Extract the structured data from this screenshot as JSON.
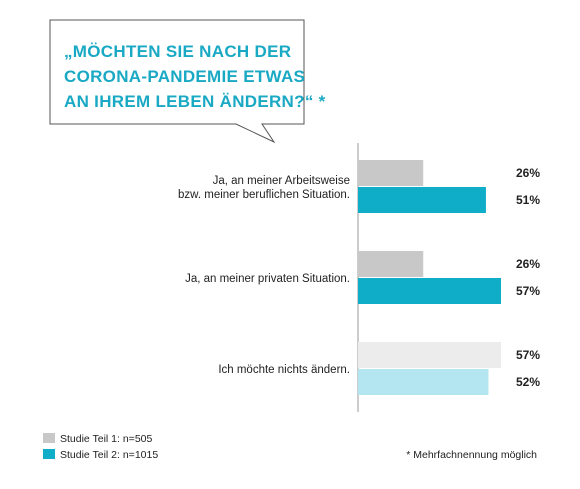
{
  "title_lines": [
    "„MÖCHTEN SIE NACH DER",
    "CORONA-PANDEMIE ETWAS",
    "AN IHREM LEBEN ÄNDERN?“ *"
  ],
  "footnote": "* Mehrfachnennung möglich",
  "colors": {
    "teil1": "#c8c8c8",
    "teil2": "#10adc9",
    "teil1_light": "#ececec",
    "teil2_light": "#b3e6f0",
    "title": "#1aa9c4"
  },
  "chart_data": {
    "type": "bar",
    "orientation": "horizontal",
    "categories": [
      [
        "Ja, an meiner Arbeitsweise",
        "bzw. meiner beruflichen Situation."
      ],
      [
        "Ja, an meiner privaten Situation."
      ],
      [
        "Ich möchte nichts ändern."
      ]
    ],
    "series": [
      {
        "name": "Studie Teil 1: n=505",
        "values": [
          26,
          26,
          57
        ],
        "labels": [
          "26%",
          "26%",
          "57%"
        ]
      },
      {
        "name": "Studie Teil 2: n=1015",
        "values": [
          51,
          57,
          52
        ],
        "labels": [
          "51%",
          "57%",
          "52%"
        ]
      }
    ],
    "xlim": [
      0,
      57
    ],
    "legend_position": "bottom-left",
    "grid": false
  }
}
